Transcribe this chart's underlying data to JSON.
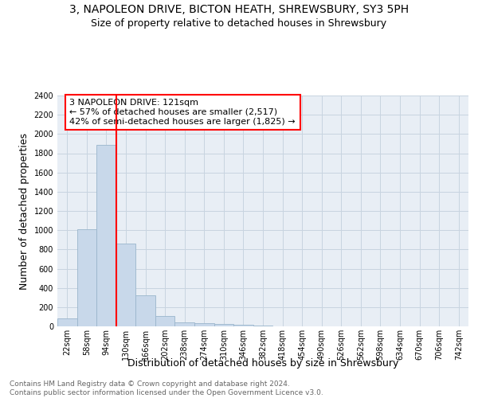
{
  "title": "3, NAPOLEON DRIVE, BICTON HEATH, SHREWSBURY, SY3 5PH",
  "subtitle": "Size of property relative to detached houses in Shrewsbury",
  "xlabel": "Distribution of detached houses by size in Shrewsbury",
  "ylabel": "Number of detached properties",
  "footer_line1": "Contains HM Land Registry data © Crown copyright and database right 2024.",
  "footer_line2": "Contains public sector information licensed under the Open Government Licence v3.0.",
  "annotation_title": "3 NAPOLEON DRIVE: 121sqm",
  "annotation_line2": "← 57% of detached houses are smaller (2,517)",
  "annotation_line3": "42% of semi-detached houses are larger (1,825) →",
  "bar_categories": [
    "22sqm",
    "58sqm",
    "94sqm",
    "130sqm",
    "166sqm",
    "202sqm",
    "238sqm",
    "274sqm",
    "310sqm",
    "346sqm",
    "382sqm",
    "418sqm",
    "454sqm",
    "490sqm",
    "526sqm",
    "562sqm",
    "598sqm",
    "634sqm",
    "670sqm",
    "706sqm",
    "742sqm"
  ],
  "bar_values": [
    80,
    1010,
    1890,
    860,
    320,
    110,
    45,
    35,
    25,
    15,
    5,
    3,
    0,
    0,
    0,
    0,
    0,
    0,
    0,
    0,
    0
  ],
  "bar_color": "#c8d8ea",
  "bar_edgecolor": "#9ab5cc",
  "property_line_x": 2.5,
  "ylim": [
    0,
    2400
  ],
  "yticks": [
    0,
    200,
    400,
    600,
    800,
    1000,
    1200,
    1400,
    1600,
    1800,
    2000,
    2200,
    2400
  ],
  "grid_color": "#c8d4e0",
  "background_color": "#e8eef5",
  "title_fontsize": 10,
  "subtitle_fontsize": 9,
  "annotation_fontsize": 8,
  "axis_label_fontsize": 9,
  "tick_fontsize": 7,
  "footer_fontsize": 6.5
}
